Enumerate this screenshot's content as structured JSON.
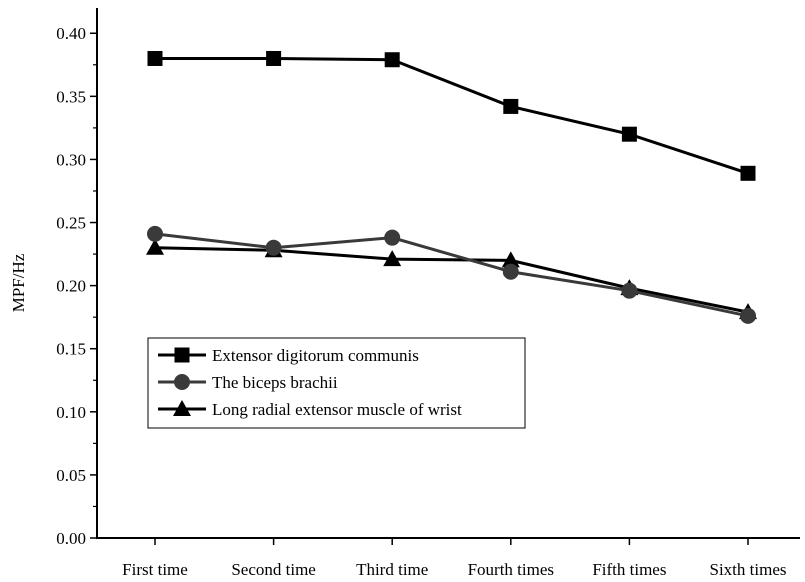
{
  "chart_data": {
    "type": "line",
    "categories": [
      "First time",
      "Second time",
      "Third time",
      "Fourth times",
      "Fifth times",
      "Sixth times"
    ],
    "series": [
      {
        "name": "Extensor digitorum communis",
        "marker": "square",
        "color": "#000000",
        "values": [
          0.38,
          0.38,
          0.379,
          0.342,
          0.32,
          0.289
        ]
      },
      {
        "name": "The biceps brachii",
        "marker": "circle",
        "color": "#3a3a3a",
        "values": [
          0.241,
          0.23,
          0.238,
          0.211,
          0.196,
          0.176
        ]
      },
      {
        "name": "Long radial extensor muscle of wrist",
        "marker": "triangle",
        "color": "#000000",
        "values": [
          0.23,
          0.228,
          0.221,
          0.22,
          0.198,
          0.179
        ]
      }
    ],
    "ylabel": "MPF/Hz",
    "xlabel": "",
    "ylim": [
      0.0,
      0.42
    ],
    "yticks": [
      "0.00",
      "0.05",
      "0.10",
      "0.15",
      "0.20",
      "0.25",
      "0.30",
      "0.35",
      "0.40"
    ],
    "grid": false,
    "legend_position": "lower-left"
  }
}
